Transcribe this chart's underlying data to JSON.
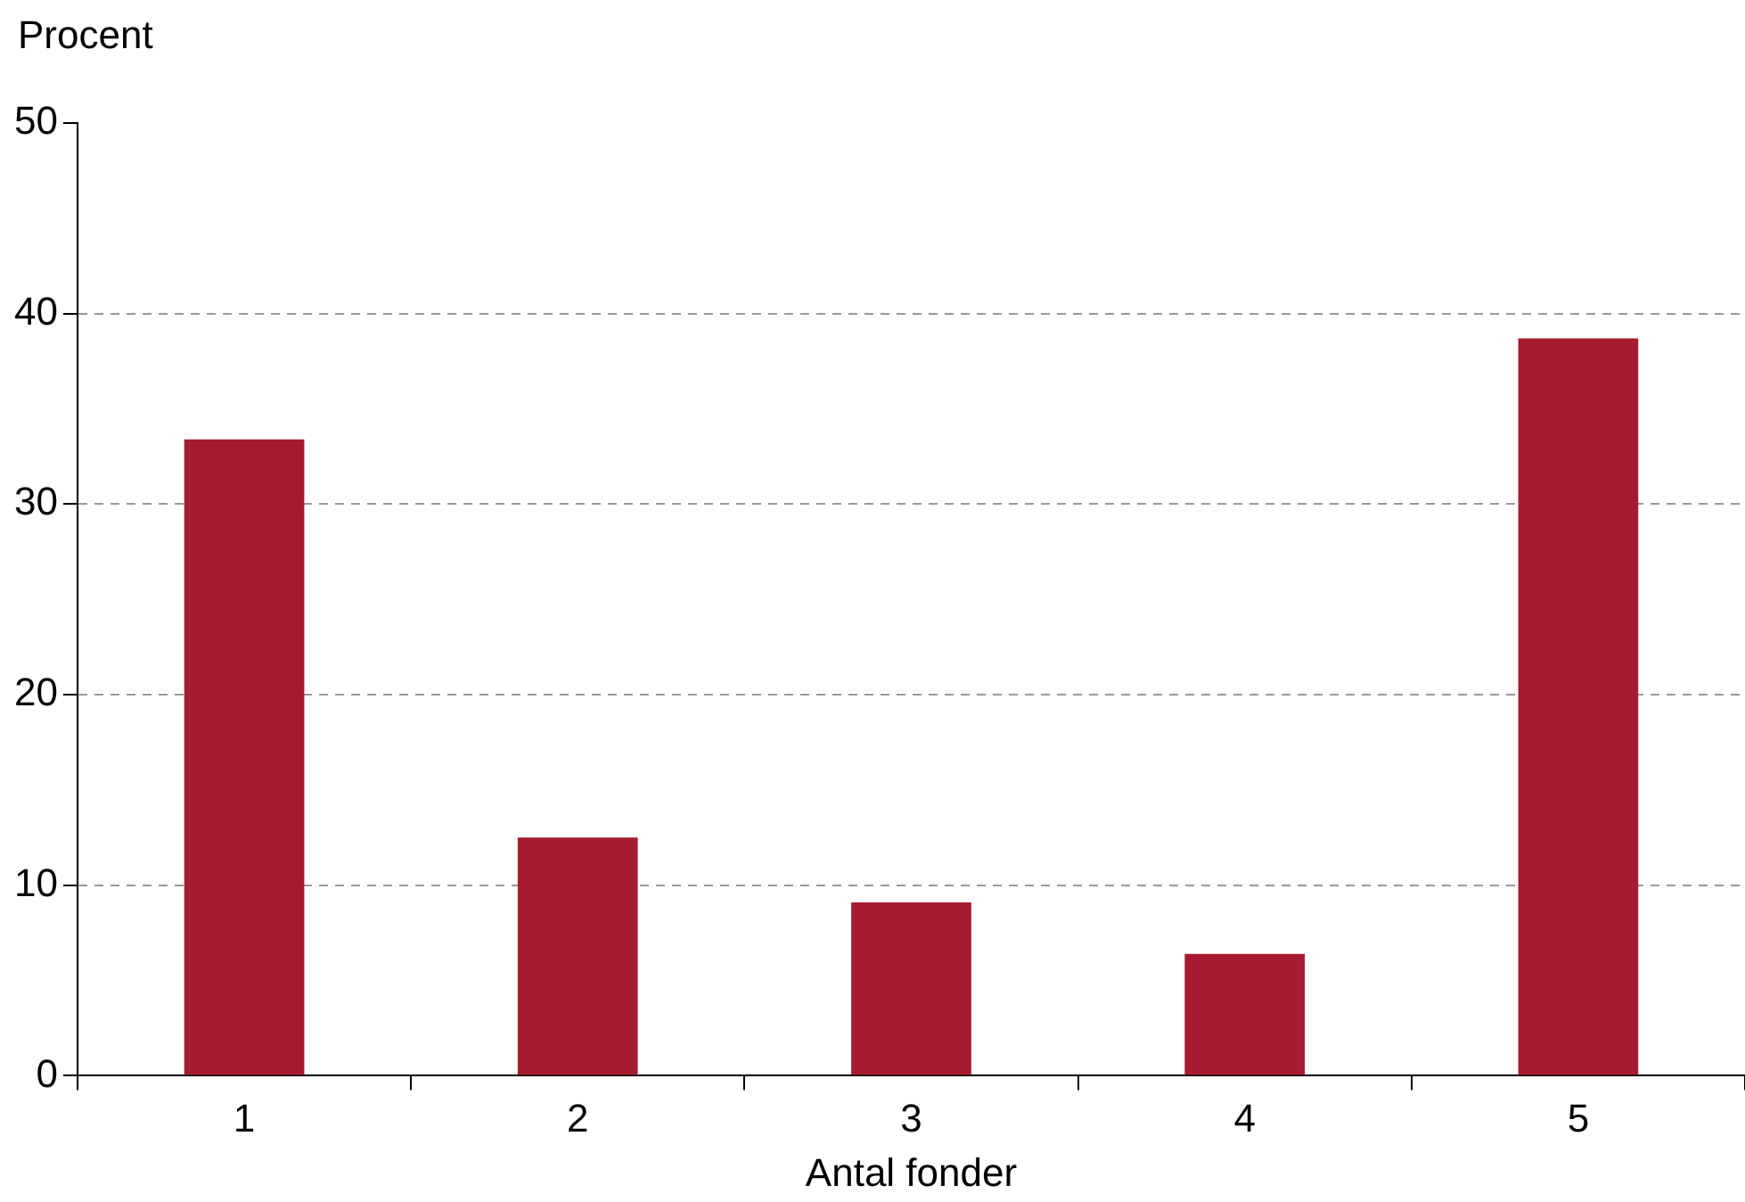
{
  "chart_data": {
    "type": "bar",
    "ylabel": "Procent",
    "xlabel": "Antal fonder",
    "categories": [
      "1",
      "2",
      "3",
      "4",
      "5"
    ],
    "values": [
      33.4,
      12.5,
      9.1,
      6.4,
      38.7
    ],
    "color": "#a51c30",
    "ylim": [
      0,
      50
    ],
    "yticks": [
      0,
      10,
      20,
      30,
      40,
      50
    ],
    "grid": "y",
    "legend": false
  }
}
